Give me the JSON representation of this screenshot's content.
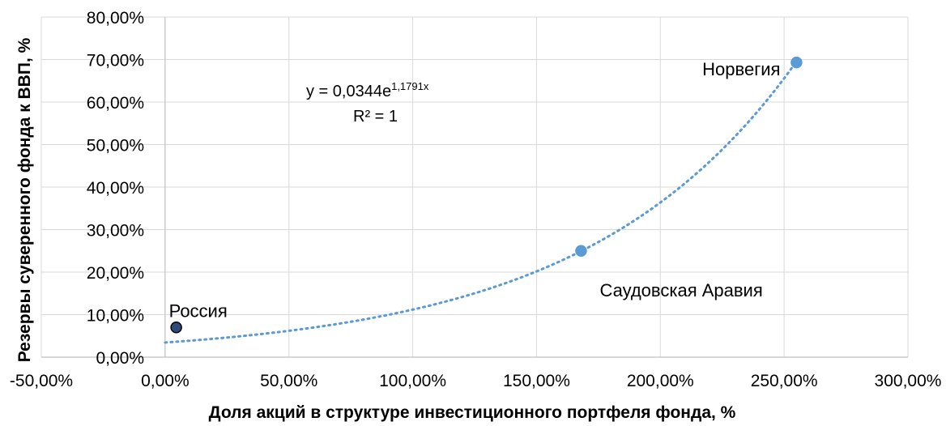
{
  "chart_data": {
    "type": "scatter",
    "title": "",
    "xlabel": "Доля акций в структуре инвестиционного портфеля фонда, %",
    "ylabel": "Резервы суверенного фонда к ВВП, %",
    "xlim": [
      -50,
      300
    ],
    "ylim": [
      0,
      80
    ],
    "x_ticks": [
      -50,
      0,
      50,
      100,
      150,
      200,
      250,
      300
    ],
    "y_ticks": [
      0,
      10,
      20,
      30,
      40,
      50,
      60,
      70,
      80
    ],
    "x_tick_labels": [
      "-50,00%",
      "0,00%",
      "50,00%",
      "100,00%",
      "150,00%",
      "200,00%",
      "250,00%",
      "300,00%"
    ],
    "y_tick_labels": [
      "0,00%",
      "10,00%",
      "20,00%",
      "30,00%",
      "40,00%",
      "50,00%",
      "60,00%",
      "70,00%",
      "80,00%"
    ],
    "grid": true,
    "points": [
      {
        "label": "Россия",
        "x": 4.5,
        "y": 7.0,
        "color": "#2f4b7c",
        "stroke": "#000000"
      },
      {
        "label": "Саудовская Аравия",
        "x": 168,
        "y": 25.0,
        "color": "#5b9bd5",
        "stroke": "#5b9bd5"
      },
      {
        "label": "Норвегия",
        "x": 255,
        "y": 69.3,
        "color": "#5b9bd5",
        "stroke": "#5b9bd5"
      }
    ],
    "trendline": {
      "type": "exponential",
      "a": 0.0344,
      "b": 1.1791,
      "x_range": [
        0,
        255
      ],
      "color": "#5b9bd5",
      "style": "dotted"
    },
    "equation": {
      "prefix": "y = 0,0344e",
      "exponent": "1,1791x",
      "r2": "R² = 1"
    }
  }
}
